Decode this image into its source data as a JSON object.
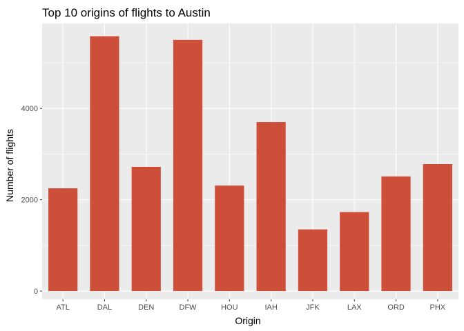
{
  "chart_data": {
    "type": "bar",
    "title": "Top 10 origins of flights to Austin",
    "xlabel": "Origin",
    "ylabel": "Number of flights",
    "categories": [
      "ATL",
      "DAL",
      "DEN",
      "DFW",
      "HOU",
      "IAH",
      "JFK",
      "LAX",
      "ORD",
      "PHX"
    ],
    "values": [
      2250,
      5580,
      2720,
      5500,
      2310,
      3700,
      1350,
      1730,
      2510,
      2780
    ],
    "yticks": [
      0,
      2000,
      4000
    ],
    "ylim": [
      -180,
      5860
    ],
    "grid": true,
    "colors": {
      "bar": "#cd4f39",
      "panel": "#ebebeb",
      "grid_major": "#ffffff",
      "grid_minor": "#f5f5f5",
      "tick": "#333333"
    }
  }
}
